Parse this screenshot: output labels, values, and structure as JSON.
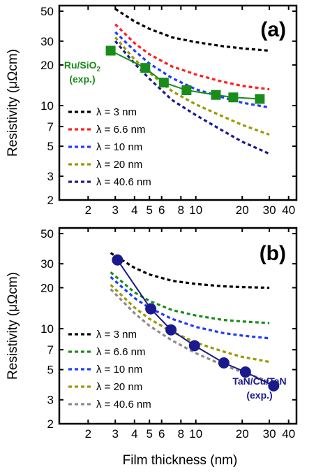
{
  "figure": {
    "xlabel": "Film thickness (nm)"
  },
  "chart_data": [
    {
      "type": "line",
      "panel_label": "(a)",
      "ylabel": "Resistivity (μΩcm)",
      "xlabel": "",
      "x_scale": "log",
      "y_scale": "log",
      "xlim": [
        1.3,
        45
      ],
      "ylim": [
        2,
        55
      ],
      "x_ticks": [
        2,
        3,
        4,
        5,
        6,
        8,
        10,
        20,
        30,
        40
      ],
      "x_tick_labels": [
        "2",
        "3",
        "4",
        "5",
        "6",
        "8",
        "10",
        "20",
        "30",
        "40"
      ],
      "y_ticks": [
        2,
        3,
        5,
        7,
        10,
        20,
        30,
        50
      ],
      "y_tick_labels": [
        "2",
        "3",
        "5",
        "7",
        "10",
        "20",
        "30",
        "50"
      ],
      "legend_position": "bottom-left",
      "series": [
        {
          "name": "λ = 3 nm",
          "color": "#000000",
          "style": "dashed",
          "x": [
            3.0,
            4.0,
            5.0,
            7.0,
            10.0,
            15.0,
            20.0,
            30.0
          ],
          "y": [
            52.0,
            42.0,
            37.0,
            32.0,
            29.5,
            27.5,
            26.5,
            25.5
          ]
        },
        {
          "name": "λ = 6.6 nm",
          "color": "#ff2020",
          "style": "dashed",
          "x": [
            3.0,
            4.0,
            5.0,
            7.0,
            10.0,
            15.0,
            20.0,
            30.0
          ],
          "y": [
            40.0,
            29.0,
            24.0,
            19.5,
            17.0,
            15.0,
            14.0,
            13.2
          ]
        },
        {
          "name": "λ = 10 nm",
          "color": "#1f3bff",
          "style": "dashed",
          "x": [
            3.0,
            4.0,
            5.0,
            7.0,
            10.0,
            15.0,
            20.0,
            30.0
          ],
          "y": [
            35.0,
            25.5,
            20.5,
            16.0,
            13.2,
            11.5,
            10.5,
            9.7
          ]
        },
        {
          "name": "λ = 20 nm",
          "color": "#999900",
          "style": "dashed",
          "x": [
            3.0,
            4.0,
            5.0,
            7.0,
            10.0,
            15.0,
            20.0,
            30.0
          ],
          "y": [
            32.0,
            22.0,
            17.5,
            12.8,
            10.2,
            8.3,
            7.2,
            6.1
          ]
        },
        {
          "name": "λ = 40.6 nm",
          "color": "#1a1a8c",
          "style": "dashed",
          "x": [
            3.0,
            4.0,
            5.0,
            7.0,
            10.0,
            15.0,
            20.0,
            30.0
          ],
          "y": [
            30.0,
            20.5,
            15.8,
            11.0,
            8.5,
            6.5,
            5.4,
            4.4
          ]
        },
        {
          "name": "Ru/SiO2 (exp.)",
          "color": "#1a8c1a",
          "style": "solid-markers",
          "marker": "square",
          "x": [
            2.8,
            4.7,
            6.2,
            8.7,
            13.5,
            17.5,
            26.0
          ],
          "y": [
            25.5,
            19.0,
            14.8,
            13.0,
            12.0,
            11.5,
            11.2
          ]
        }
      ],
      "annotation": {
        "text": "Ru/SiO",
        "subscript": "2",
        "text2": "(exp.)",
        "color": "#1a8c1a"
      }
    },
    {
      "type": "line",
      "panel_label": "(b)",
      "ylabel": "Resistivity (μΩcm)",
      "xlabel": "Film thickness (nm)",
      "x_scale": "log",
      "y_scale": "log",
      "xlim": [
        1.3,
        45
      ],
      "ylim": [
        2,
        55
      ],
      "x_ticks": [
        2,
        3,
        4,
        5,
        6,
        8,
        10,
        20,
        30,
        40
      ],
      "x_tick_labels": [
        "2",
        "3",
        "4",
        "5",
        "6",
        "8",
        "10",
        "20",
        "30",
        "40"
      ],
      "y_ticks": [
        2,
        3,
        5,
        7,
        10,
        20,
        30,
        50
      ],
      "y_tick_labels": [
        "2",
        "3",
        "5",
        "7",
        "10",
        "20",
        "30",
        "50"
      ],
      "legend_position": "bottom-left",
      "series": [
        {
          "name": "λ = 3 nm",
          "color": "#000000",
          "style": "dashed",
          "x": [
            2.8,
            4.0,
            5.0,
            7.0,
            10.0,
            15.0,
            20.0,
            30.0
          ],
          "y": [
            36.0,
            28.0,
            25.0,
            22.5,
            21.3,
            20.5,
            20.2,
            20.0
          ]
        },
        {
          "name": "λ = 6.6 nm",
          "color": "#1a8c1a",
          "style": "dashed",
          "x": [
            2.8,
            4.0,
            5.0,
            7.0,
            10.0,
            15.0,
            20.0,
            30.0
          ],
          "y": [
            26.0,
            18.5,
            16.0,
            13.7,
            12.5,
            11.6,
            11.3,
            11.0
          ]
        },
        {
          "name": "λ = 10 nm",
          "color": "#1f3bff",
          "style": "dashed",
          "x": [
            2.8,
            4.0,
            5.0,
            7.0,
            10.0,
            15.0,
            20.0,
            30.0
          ],
          "y": [
            24.0,
            16.8,
            14.2,
            11.8,
            10.3,
            9.3,
            8.9,
            8.5
          ]
        },
        {
          "name": "λ = 20 nm",
          "color": "#999900",
          "style": "dashed",
          "x": [
            2.8,
            4.0,
            5.0,
            7.0,
            10.0,
            15.0,
            20.0,
            30.0
          ],
          "y": [
            21.0,
            14.3,
            11.8,
            9.5,
            7.9,
            6.8,
            6.2,
            5.7
          ]
        },
        {
          "name": "λ = 40.6 nm",
          "color": "#8c8c8c",
          "style": "dashed",
          "x": [
            2.8,
            4.0,
            5.0,
            7.0,
            10.0,
            15.0,
            20.0,
            30.0
          ],
          "y": [
            19.5,
            13.0,
            10.5,
            8.2,
            6.6,
            5.4,
            4.8,
            4.1
          ]
        },
        {
          "name": "TaN/Cu/TaN (exp.)",
          "color": "#1a1a8c",
          "style": "solid-markers",
          "marker": "circle",
          "x": [
            3.1,
            5.1,
            6.9,
            9.8,
            15.2,
            21.0,
            32.0
          ],
          "y": [
            32.0,
            14.0,
            9.8,
            7.5,
            5.6,
            4.8,
            3.8
          ]
        }
      ],
      "annotation": {
        "text": "TaN/Cu/TaN",
        "text2": "(exp.)",
        "color": "#1a1a8c"
      }
    }
  ]
}
